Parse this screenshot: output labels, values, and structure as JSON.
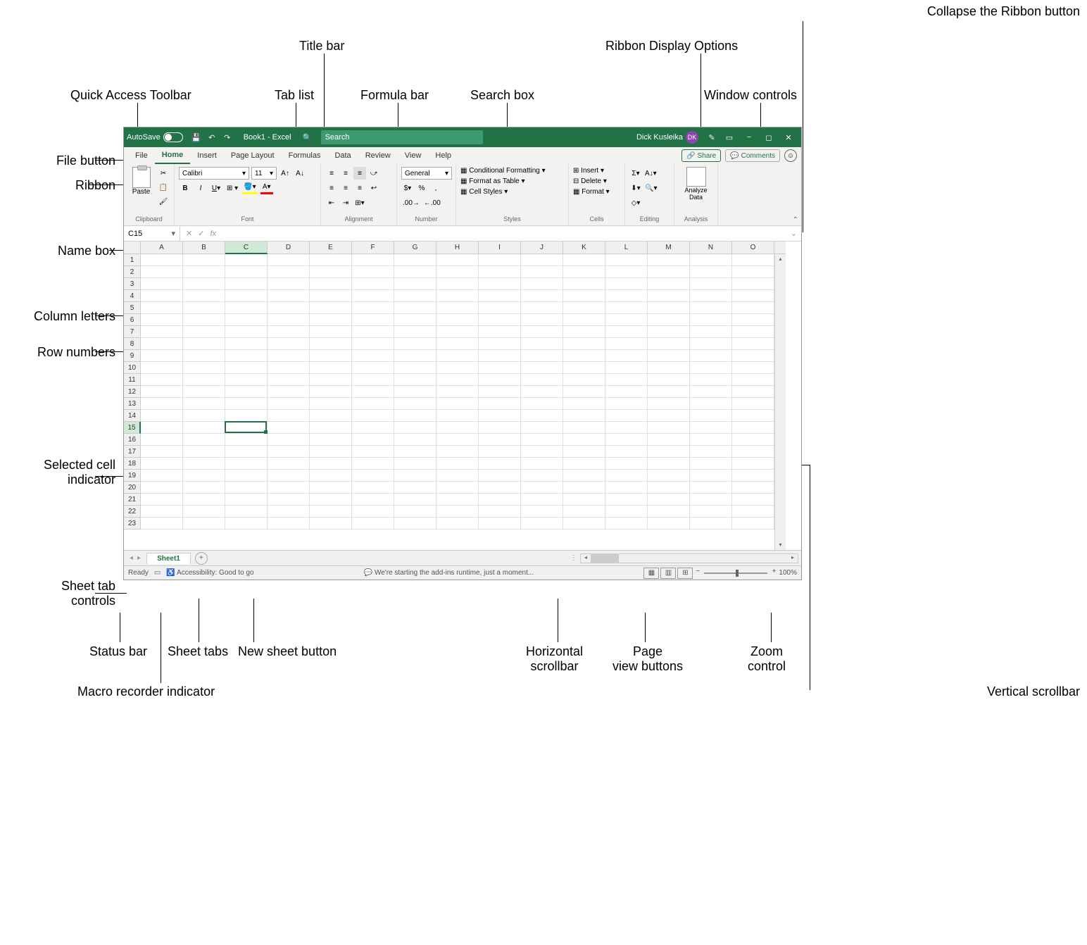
{
  "colors": {
    "excel_green": "#217346",
    "search_bg": "#3d9970",
    "user_badge": "#8e44ad",
    "ribbon_bg": "#f3f2f1",
    "grid_border": "#e0e0e0",
    "header_bg": "#f0f0f0"
  },
  "labels": {
    "collapse_ribbon": "Collapse the Ribbon button",
    "ribbon_display": "Ribbon Display Options",
    "quick_access": "Quick Access Toolbar",
    "tab_list": "Tab list",
    "title_bar": "Title bar",
    "formula_bar": "Formula bar",
    "search_box": "Search box",
    "window_controls": "Window controls",
    "file_button": "File button",
    "ribbon": "Ribbon",
    "name_box": "Name box",
    "column_letters": "Column letters",
    "row_numbers": "Row numbers",
    "selected_cell": "Selected cell indicator",
    "sheet_tab_controls": "Sheet tab controls",
    "status_bar": "Status bar",
    "sheet_tabs": "Sheet tabs",
    "new_sheet": "New sheet button",
    "macro_recorder": "Macro recorder indicator",
    "hscroll": "Horizontal scrollbar",
    "page_view": "Page view buttons",
    "zoom": "Zoom control",
    "vscroll": "Vertical scrollbar"
  },
  "titlebar": {
    "autosave": "AutoSave",
    "title": "Book1  -  Excel",
    "search_placeholder": "Search",
    "user_name": "Dick Kusleika",
    "user_initials": "DK"
  },
  "tabs": {
    "items": [
      "File",
      "Home",
      "Insert",
      "Page Layout",
      "Formulas",
      "Data",
      "Review",
      "View",
      "Help"
    ],
    "active": "Home",
    "share": "Share",
    "comments": "Comments"
  },
  "ribbon_data": {
    "clipboard": {
      "paste": "Paste",
      "label": "Clipboard"
    },
    "font": {
      "name": "Calibri",
      "size": "11",
      "label": "Font"
    },
    "alignment": {
      "label": "Alignment"
    },
    "number": {
      "format": "General",
      "label": "Number"
    },
    "styles": {
      "conditional": "Conditional Formatting",
      "table": "Format as Table",
      "cell": "Cell Styles",
      "label": "Styles"
    },
    "cells": {
      "insert": "Insert",
      "delete": "Delete",
      "format": "Format",
      "label": "Cells"
    },
    "editing": {
      "label": "Editing"
    },
    "analysis": {
      "analyze": "Analyze Data",
      "label": "Analysis"
    }
  },
  "formula_bar_data": {
    "name_box": "C15",
    "fx": "fx"
  },
  "grid": {
    "columns": [
      "A",
      "B",
      "C",
      "D",
      "E",
      "F",
      "G",
      "H",
      "I",
      "J",
      "K",
      "L",
      "M",
      "N",
      "O"
    ],
    "rows": 23,
    "selected_col": "C",
    "selected_row": 15
  },
  "sheet": {
    "name": "Sheet1"
  },
  "status": {
    "ready": "Ready",
    "accessibility": "Accessibility: Good to go",
    "addins": "We're starting the add-ins runtime, just a moment...",
    "zoom": "100%"
  }
}
